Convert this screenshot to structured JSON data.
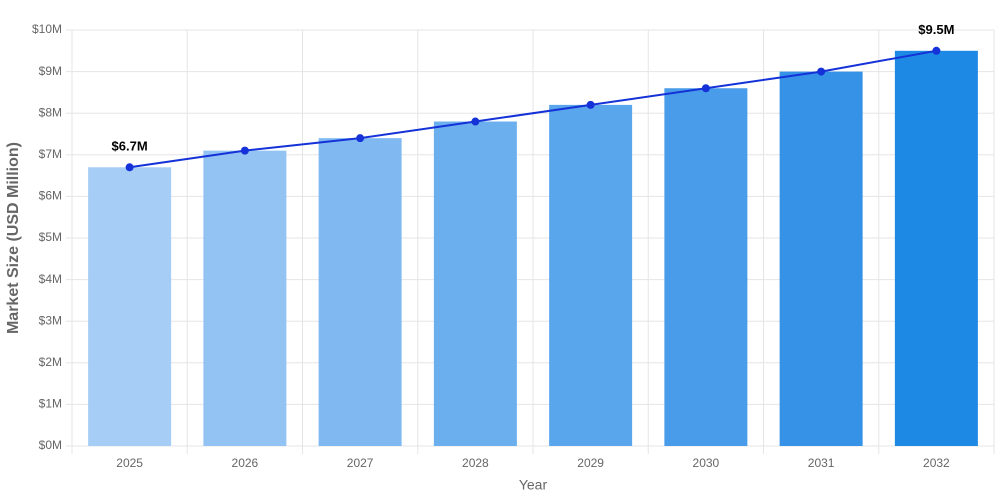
{
  "chart_data": {
    "type": "bar_line",
    "x_label": "Year",
    "y_label": "Market Size (USD Million)",
    "categories": [
      "2025",
      "2026",
      "2027",
      "2028",
      "2029",
      "2030",
      "2031",
      "2032"
    ],
    "values": [
      6.7,
      7.1,
      7.4,
      7.8,
      8.2,
      8.6,
      9.0,
      9.5
    ],
    "value_labels": [
      "$6.7M",
      null,
      null,
      null,
      null,
      null,
      null,
      "$9.5M"
    ],
    "colors": [
      "#a6cdf5",
      "#93c3f3",
      "#80b9f1",
      "#6cafee",
      "#5aa6ec",
      "#489ce9",
      "#3592e7",
      "#1e88e5"
    ],
    "line_color": "#1432d8",
    "ylim": [
      0,
      10
    ],
    "yticks": [
      {
        "value": 0,
        "label": "$0M"
      },
      {
        "value": 1,
        "label": "$1M"
      },
      {
        "value": 2,
        "label": "$2M"
      },
      {
        "value": 3,
        "label": "$3M"
      },
      {
        "value": 4,
        "label": "$4M"
      },
      {
        "value": 5,
        "label": "$5M"
      },
      {
        "value": 6,
        "label": "$6M"
      },
      {
        "value": 7,
        "label": "$7M"
      },
      {
        "value": 8,
        "label": "$8M"
      },
      {
        "value": 9,
        "label": "$9M"
      },
      {
        "value": 10,
        "label": "$10M"
      }
    ],
    "grid": true
  }
}
